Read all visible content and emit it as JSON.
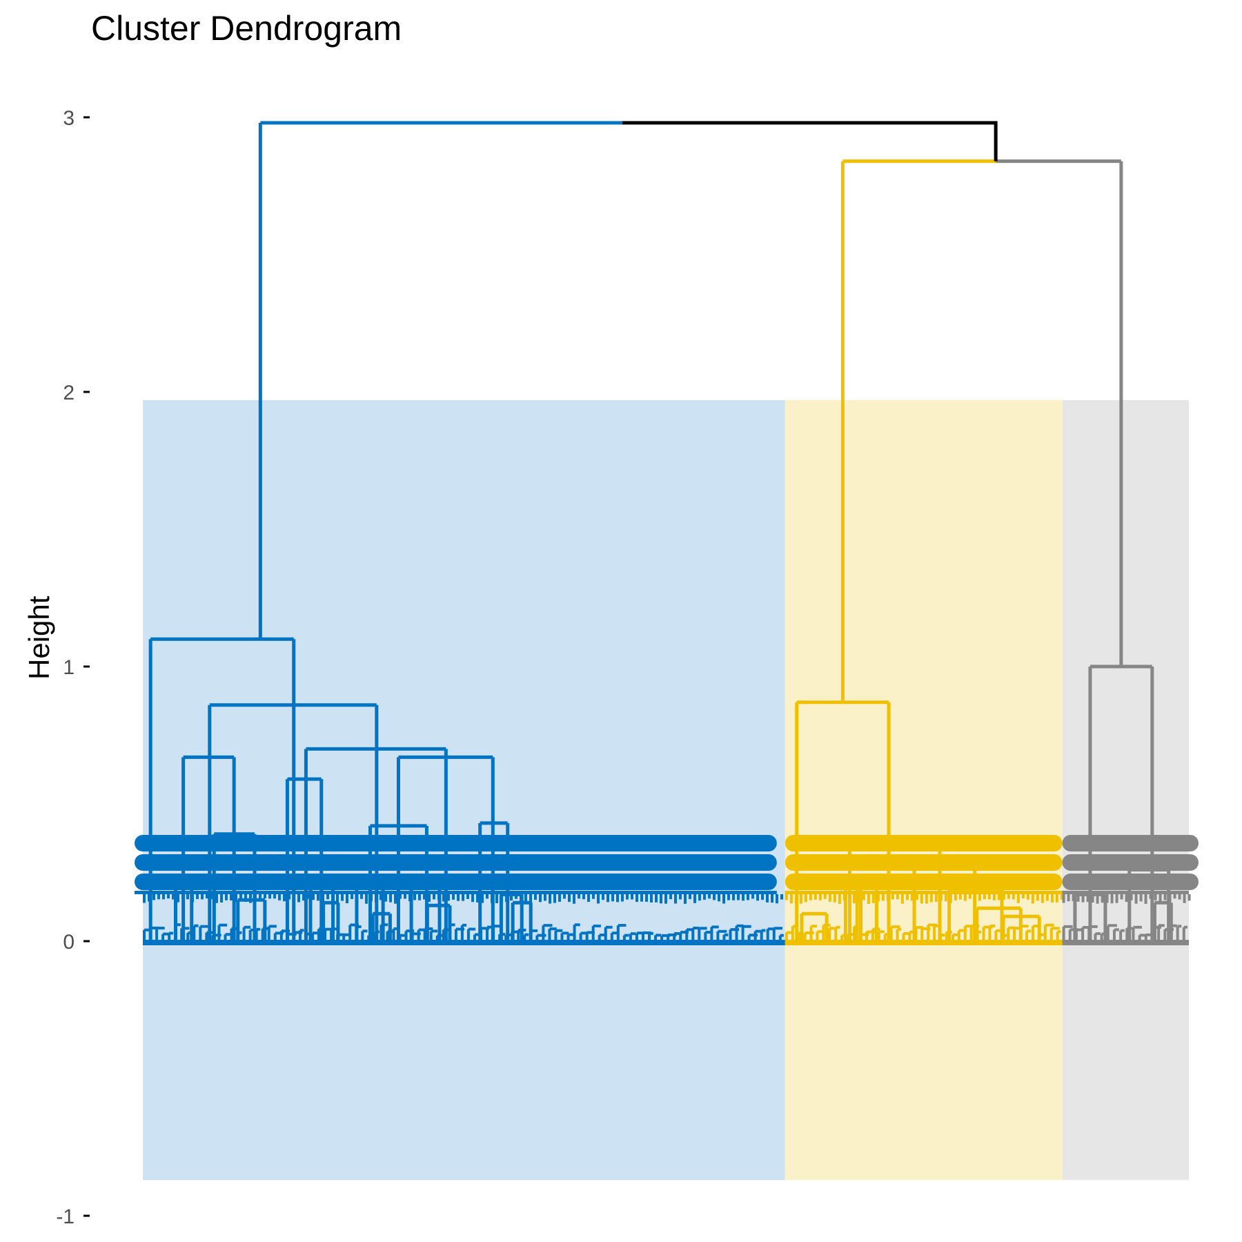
{
  "chart_data": {
    "type": "dendrogram",
    "title": "Cluster Dendrogram",
    "ylabel": "Height",
    "xlabel": "",
    "ylim": [
      -1,
      3
    ],
    "yticks": [
      -1,
      0,
      1,
      2,
      3
    ],
    "grid": false,
    "root_merge_height": 2.98,
    "clusters": [
      {
        "color": "#0073C2",
        "label_share": 0.614,
        "root_height": 2.98,
        "merges": [
          {
            "left": 0.012,
            "right": 0.235,
            "height": 1.1
          },
          {
            "left": 0.104,
            "right": 0.364,
            "height": 0.86
          },
          {
            "left": 0.063,
            "right": 0.142,
            "height": 0.67
          },
          {
            "left": 0.254,
            "right": 0.472,
            "height": 0.7
          },
          {
            "left": 0.225,
            "right": 0.278,
            "height": 0.59
          },
          {
            "left": 0.398,
            "right": 0.545,
            "height": 0.67
          },
          {
            "left": 0.354,
            "right": 0.442,
            "height": 0.42
          },
          {
            "left": 0.525,
            "right": 0.568,
            "height": 0.43
          },
          {
            "left": 0.111,
            "right": 0.174,
            "height": 0.39
          },
          {
            "left": 0.051,
            "right": 0.076,
            "height": 0.21
          },
          {
            "left": 0.261,
            "right": 0.296,
            "height": 0.24
          },
          {
            "left": 0.333,
            "right": 0.374,
            "height": 0.23
          },
          {
            "left": 0.418,
            "right": 0.462,
            "height": 0.23
          },
          {
            "left": 0.558,
            "right": 0.59,
            "height": 0.17
          },
          {
            "left": 0.148,
            "right": 0.19,
            "height": 0.15
          },
          {
            "left": 0.576,
            "right": 0.604,
            "height": 0.14
          },
          {
            "left": 0.281,
            "right": 0.304,
            "height": 0.14
          },
          {
            "left": 0.358,
            "right": 0.385,
            "height": 0.1
          },
          {
            "left": 0.443,
            "right": 0.478,
            "height": 0.13
          }
        ]
      },
      {
        "color": "#EFC000",
        "label_share": 0.265,
        "root_height": 2.84,
        "merges": [
          {
            "left": 0.042,
            "right": 0.374,
            "height": 0.87
          },
          {
            "left": 0.233,
            "right": 0.558,
            "height": 0.35
          },
          {
            "left": 0.218,
            "right": 0.273,
            "height": 0.23
          },
          {
            "left": 0.466,
            "right": 0.684,
            "height": 0.31
          },
          {
            "left": 0.592,
            "right": 0.782,
            "height": 0.19
          },
          {
            "left": 0.692,
            "right": 0.85,
            "height": 0.12
          },
          {
            "left": 0.787,
            "right": 0.917,
            "height": 0.09
          },
          {
            "left": 0.06,
            "right": 0.15,
            "height": 0.1
          },
          {
            "left": 0.26,
            "right": 0.33,
            "height": 0.2
          }
        ]
      },
      {
        "color": "#868686",
        "label_share": 0.121,
        "root_height": 2.84,
        "merges": [
          {
            "left": 0.22,
            "right": 0.71,
            "height": 1.0
          },
          {
            "left": 0.1,
            "right": 0.34,
            "height": 0.17
          },
          {
            "left": 0.53,
            "right": 0.84,
            "height": 0.26
          },
          {
            "left": 0.73,
            "right": 0.86,
            "height": 0.14
          }
        ]
      }
    ],
    "branch_color_top": "#000000"
  }
}
